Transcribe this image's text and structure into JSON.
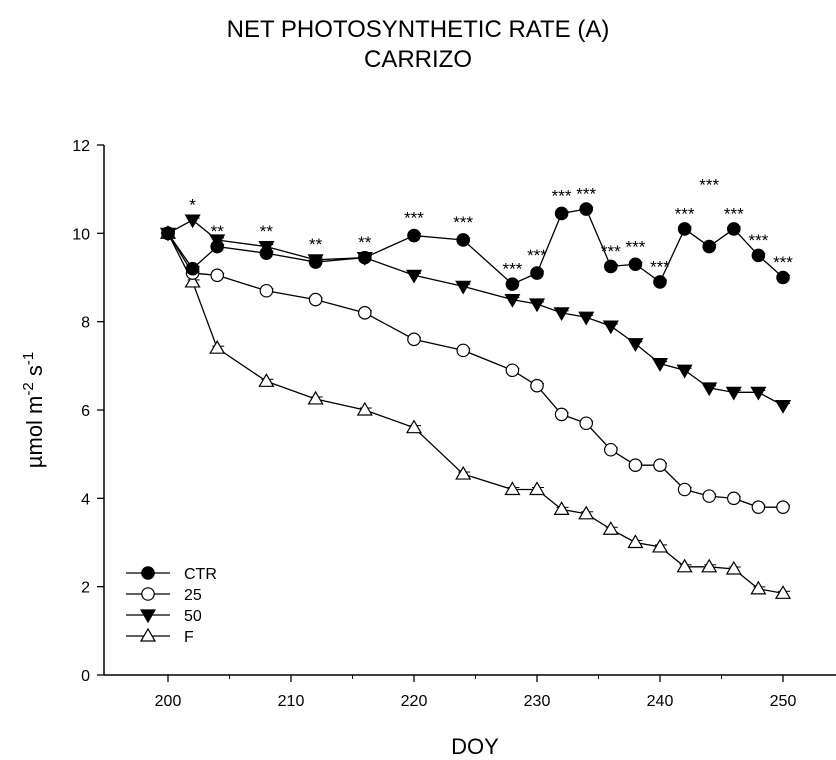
{
  "chart_data": {
    "type": "line",
    "title": "NET PHOTOSYNTHETIC RATE (A)",
    "subtitle": "CARRIZO",
    "xlabel": "DOY",
    "ylabel_base": "µmol m",
    "ylabel_exp1": "-2",
    "ylabel_mid": " s",
    "ylabel_exp2": "-1",
    "xlim": [
      196,
      253
    ],
    "ylim": [
      0,
      12
    ],
    "xticks": [
      200,
      210,
      220,
      230,
      240,
      250
    ],
    "yticks": [
      0,
      2,
      4,
      6,
      8,
      10,
      12
    ],
    "legend_position": "bottom-left",
    "series": [
      {
        "name": "CTR",
        "marker": "filled-circle",
        "x": [
          200,
          202,
          204,
          208,
          212,
          216,
          220,
          224,
          228,
          230,
          232,
          234,
          236,
          238,
          240,
          242,
          244,
          246,
          248,
          250
        ],
        "y": [
          10.0,
          9.2,
          9.7,
          9.55,
          9.35,
          9.45,
          9.95,
          9.85,
          8.85,
          9.1,
          10.45,
          10.55,
          9.25,
          9.3,
          8.9,
          10.1,
          9.7,
          10.1,
          9.5,
          9.0
        ]
      },
      {
        "name": "25",
        "marker": "open-circle",
        "x": [
          200,
          202,
          204,
          208,
          212,
          216,
          220,
          224,
          228,
          230,
          232,
          234,
          236,
          238,
          240,
          242,
          244,
          246,
          248,
          250
        ],
        "y": [
          10.0,
          9.1,
          9.05,
          8.7,
          8.5,
          8.2,
          7.6,
          7.35,
          6.9,
          6.55,
          5.9,
          5.7,
          5.1,
          4.75,
          4.75,
          4.2,
          4.05,
          4.0,
          3.8,
          3.8
        ]
      },
      {
        "name": "50",
        "marker": "filled-triangle-down",
        "x": [
          200,
          202,
          204,
          208,
          212,
          216,
          220,
          224,
          228,
          230,
          232,
          234,
          236,
          238,
          240,
          242,
          244,
          246,
          248,
          250
        ],
        "y": [
          10.0,
          10.3,
          9.85,
          9.7,
          9.4,
          9.45,
          9.05,
          8.8,
          8.5,
          8.4,
          8.2,
          8.1,
          7.9,
          7.5,
          7.05,
          6.9,
          6.5,
          6.4,
          6.4,
          6.1
        ]
      },
      {
        "name": "F",
        "marker": "open-triangle-up",
        "x": [
          200,
          202,
          204,
          208,
          212,
          216,
          220,
          224,
          228,
          230,
          232,
          234,
          236,
          238,
          240,
          242,
          244,
          246,
          248,
          250
        ],
        "y": [
          10.0,
          8.9,
          7.4,
          6.65,
          6.25,
          6.0,
          5.6,
          4.55,
          4.2,
          4.2,
          3.75,
          3.65,
          3.3,
          3.0,
          2.9,
          2.45,
          2.45,
          2.4,
          1.95,
          1.85
        ]
      }
    ],
    "annotations": [
      {
        "x": 202,
        "y": 10.7,
        "text": "*"
      },
      {
        "x": 204,
        "y": 10.1,
        "text": "**"
      },
      {
        "x": 208,
        "y": 10.1,
        "text": "**"
      },
      {
        "x": 212,
        "y": 9.8,
        "text": "**"
      },
      {
        "x": 216,
        "y": 9.85,
        "text": "**"
      },
      {
        "x": 220,
        "y": 10.4,
        "text": "***"
      },
      {
        "x": 224,
        "y": 10.3,
        "text": "***"
      },
      {
        "x": 228,
        "y": 9.25,
        "text": "***"
      },
      {
        "x": 230,
        "y": 9.55,
        "text": "***"
      },
      {
        "x": 232,
        "y": 10.9,
        "text": "***"
      },
      {
        "x": 234,
        "y": 10.95,
        "text": "***"
      },
      {
        "x": 236,
        "y": 9.65,
        "text": "***"
      },
      {
        "x": 238,
        "y": 9.75,
        "text": "***"
      },
      {
        "x": 240,
        "y": 9.3,
        "text": "***"
      },
      {
        "x": 242,
        "y": 10.5,
        "text": "***"
      },
      {
        "x": 244,
        "y": 11.15,
        "text": "***"
      },
      {
        "x": 246,
        "y": 10.5,
        "text": "***"
      },
      {
        "x": 248,
        "y": 9.9,
        "text": "***"
      },
      {
        "x": 250,
        "y": 9.4,
        "text": "***"
      }
    ]
  }
}
